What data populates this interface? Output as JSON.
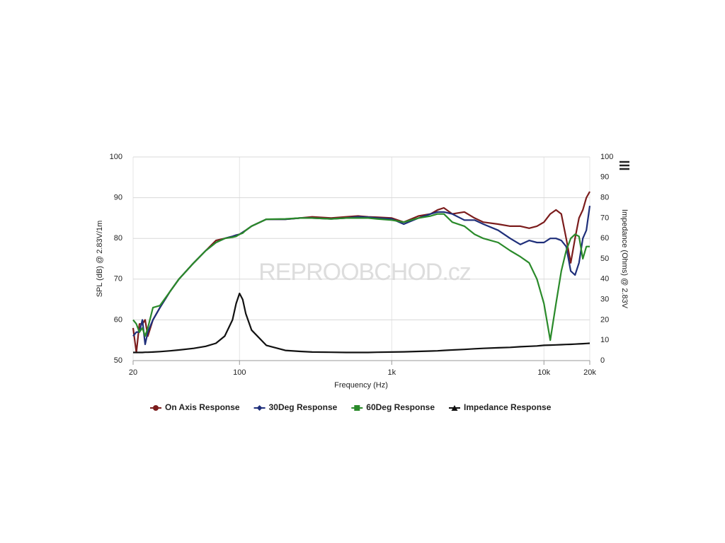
{
  "chart_data": {
    "type": "line",
    "x_scale": "log",
    "xlabel": "Frequency (Hz)",
    "ylabel": "SPL (dB) @ 2.83V/1m",
    "y2label": "Impedance (Ohms) @ 2.83V",
    "watermark": "REPROOBCHOD.cz",
    "x": [
      20,
      21,
      22,
      23,
      24,
      25,
      27,
      30,
      35,
      40,
      50,
      60,
      70,
      80,
      90,
      95,
      100,
      105,
      110,
      120,
      150,
      200,
      250,
      300,
      400,
      500,
      600,
      700,
      800,
      1000,
      1200,
      1500,
      1800,
      2000,
      2200,
      2500,
      3000,
      3500,
      4000,
      5000,
      6000,
      7000,
      8000,
      9000,
      10000,
      11000,
      12000,
      13000,
      14000,
      15000,
      16000,
      17000,
      18000,
      19000,
      20000
    ],
    "xlim": [
      20,
      20000
    ],
    "xticks": [
      20,
      100,
      {
        "value": 1000,
        "label": "1k"
      },
      {
        "value": 10000,
        "label": "10k"
      },
      {
        "value": 20000,
        "label": "20k"
      }
    ],
    "ylim": [
      50,
      100
    ],
    "yticks": [
      50,
      60,
      70,
      80,
      90,
      100
    ],
    "y2lim": [
      0,
      100
    ],
    "y2ticks": [
      0,
      10,
      20,
      30,
      40,
      50,
      60,
      70,
      80,
      90,
      100
    ],
    "grid": true,
    "legend": "bottom",
    "series": [
      {
        "name": "On Axis Response",
        "color": "#7b1c1c",
        "marker": "circle",
        "values": [
          58,
          52,
          59,
          59,
          60,
          56,
          60,
          63,
          67,
          70,
          74,
          77,
          79.5,
          80,
          80.5,
          80.8,
          81,
          81.5,
          82,
          83,
          84.7,
          84.7,
          85,
          85.3,
          85,
          85.3,
          85.5,
          85.3,
          85.2,
          85,
          84,
          85.5,
          86,
          87,
          87.5,
          86,
          86.5,
          85,
          84,
          83.5,
          83,
          83,
          82.5,
          83,
          84,
          86,
          87,
          86,
          80,
          74,
          80,
          85,
          87,
          90,
          91.5
        ]
      },
      {
        "name": "30Deg Response",
        "color": "#1f2f7a",
        "marker": "diamond",
        "values": [
          56,
          57,
          57,
          60,
          54,
          57,
          60,
          63,
          67,
          70,
          74,
          77,
          79,
          80,
          80.5,
          80.8,
          81,
          81.5,
          82,
          83,
          84.7,
          84.7,
          85,
          85,
          84.8,
          85,
          85.3,
          85.2,
          85,
          84.8,
          83.5,
          85,
          86,
          86.5,
          86.5,
          86,
          84.5,
          84.5,
          83.5,
          82,
          80,
          78.5,
          79.5,
          79,
          79,
          80,
          80,
          79.5,
          78,
          72,
          71,
          74,
          80,
          82,
          88
        ]
      },
      {
        "name": "60Deg Response",
        "color": "#2a8a2a",
        "marker": "square",
        "values": [
          60,
          59,
          57,
          58,
          56,
          58,
          63,
          63.5,
          67,
          70,
          74,
          77,
          79,
          80,
          80.3,
          80.5,
          81,
          81.3,
          82,
          83,
          84.7,
          84.8,
          85,
          85,
          84.8,
          85,
          85,
          85,
          84.8,
          84.5,
          84,
          85,
          85.5,
          86,
          86,
          84,
          83,
          81,
          80,
          79,
          77,
          75.5,
          74,
          70,
          64,
          55,
          64,
          72,
          77,
          80,
          81,
          80.5,
          75,
          78,
          78
        ]
      },
      {
        "name": "Impedance Response",
        "color": "#111111",
        "marker": "triangle",
        "axis": "y2",
        "values": [
          4,
          4,
          4,
          4,
          4.1,
          4.1,
          4.2,
          4.4,
          4.8,
          5.2,
          6,
          7,
          8.5,
          12,
          20,
          28,
          33,
          30,
          23,
          15,
          7.5,
          5,
          4.5,
          4.2,
          4.1,
          4,
          4,
          4,
          4.1,
          4.2,
          4.3,
          4.5,
          4.7,
          4.8,
          5,
          5.2,
          5.5,
          5.8,
          6,
          6.3,
          6.5,
          6.8,
          7,
          7.2,
          7.5,
          7.6,
          7.7,
          7.8,
          7.9,
          8,
          8.1,
          8.2,
          8.3,
          8.4,
          8.5
        ]
      }
    ]
  }
}
